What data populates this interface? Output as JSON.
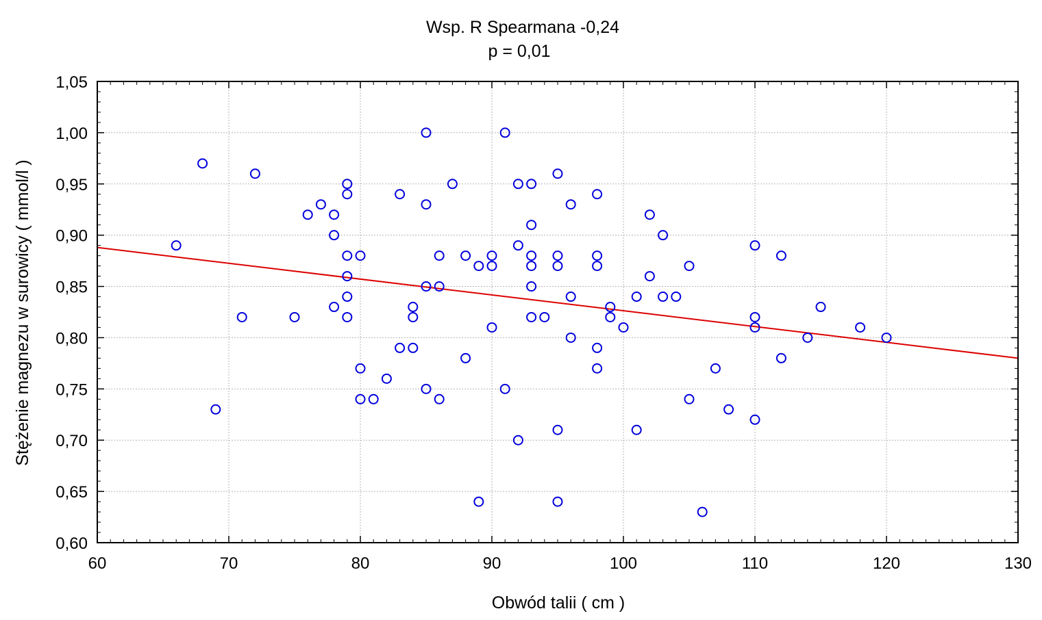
{
  "chart_data": {
    "type": "scatter",
    "title": "Wsp. R Spearmana  -0,24",
    "subtitle": "p = 0,01",
    "xlabel": "Obwód talii ( cm )",
    "ylabel": "Stężenie magnezu w surowicy ( mmol/l )",
    "xlim": [
      60,
      130
    ],
    "ylim": [
      0.6,
      1.05
    ],
    "x_ticks": [
      "60",
      "70",
      "80",
      "90",
      "100",
      "110",
      "120",
      "130"
    ],
    "y_ticks": [
      "0,60",
      "0,65",
      "0,70",
      "0,75",
      "0,80",
      "0,85",
      "0,90",
      "0,95",
      "1,00",
      "1,05"
    ],
    "grid": true,
    "marker_color": "#0000dd",
    "fit_line_color": "#dd0000",
    "fit_line": {
      "x": [
        60,
        130
      ],
      "y": [
        0.888,
        0.78
      ]
    },
    "points": [
      [
        66,
        0.89
      ],
      [
        68,
        0.97
      ],
      [
        69,
        0.73
      ],
      [
        71,
        0.82
      ],
      [
        72,
        0.96
      ],
      [
        75,
        0.82
      ],
      [
        76,
        0.92
      ],
      [
        77,
        0.93
      ],
      [
        78,
        0.92
      ],
      [
        78,
        0.9
      ],
      [
        78,
        0.83
      ],
      [
        79,
        0.95
      ],
      [
        79,
        0.94
      ],
      [
        79,
        0.88
      ],
      [
        79,
        0.86
      ],
      [
        79,
        0.84
      ],
      [
        79,
        0.82
      ],
      [
        80,
        0.88
      ],
      [
        80,
        0.77
      ],
      [
        80,
        0.74
      ],
      [
        81,
        0.74
      ],
      [
        82,
        0.76
      ],
      [
        83,
        0.94
      ],
      [
        83,
        0.79
      ],
      [
        84,
        0.83
      ],
      [
        84,
        0.82
      ],
      [
        84,
        0.79
      ],
      [
        85,
        1.0
      ],
      [
        85,
        0.93
      ],
      [
        85,
        0.85
      ],
      [
        85,
        0.75
      ],
      [
        86,
        0.88
      ],
      [
        86,
        0.85
      ],
      [
        86,
        0.74
      ],
      [
        87,
        0.95
      ],
      [
        88,
        0.88
      ],
      [
        88,
        0.78
      ],
      [
        89,
        0.87
      ],
      [
        89,
        0.64
      ],
      [
        90,
        0.88
      ],
      [
        90,
        0.87
      ],
      [
        90,
        0.81
      ],
      [
        91,
        1.0
      ],
      [
        91,
        0.75
      ],
      [
        92,
        0.95
      ],
      [
        92,
        0.89
      ],
      [
        92,
        0.7
      ],
      [
        93,
        0.95
      ],
      [
        93,
        0.91
      ],
      [
        93,
        0.88
      ],
      [
        93,
        0.87
      ],
      [
        93,
        0.85
      ],
      [
        93,
        0.82
      ],
      [
        94,
        0.82
      ],
      [
        95,
        0.96
      ],
      [
        95,
        0.88
      ],
      [
        95,
        0.87
      ],
      [
        95,
        0.71
      ],
      [
        95,
        0.64
      ],
      [
        96,
        0.93
      ],
      [
        96,
        0.84
      ],
      [
        96,
        0.8
      ],
      [
        98,
        0.94
      ],
      [
        98,
        0.88
      ],
      [
        98,
        0.87
      ],
      [
        98,
        0.79
      ],
      [
        98,
        0.77
      ],
      [
        99,
        0.83
      ],
      [
        99,
        0.82
      ],
      [
        100,
        0.81
      ],
      [
        101,
        0.84
      ],
      [
        101,
        0.71
      ],
      [
        102,
        0.92
      ],
      [
        102,
        0.86
      ],
      [
        103,
        0.9
      ],
      [
        103,
        0.84
      ],
      [
        104,
        0.84
      ],
      [
        105,
        0.87
      ],
      [
        105,
        0.74
      ],
      [
        106,
        0.63
      ],
      [
        107,
        0.77
      ],
      [
        108,
        0.73
      ],
      [
        110,
        0.89
      ],
      [
        110,
        0.82
      ],
      [
        110,
        0.81
      ],
      [
        110,
        0.72
      ],
      [
        112,
        0.88
      ],
      [
        112,
        0.78
      ],
      [
        114,
        0.8
      ],
      [
        115,
        0.83
      ],
      [
        118,
        0.81
      ],
      [
        120,
        0.8
      ]
    ]
  }
}
